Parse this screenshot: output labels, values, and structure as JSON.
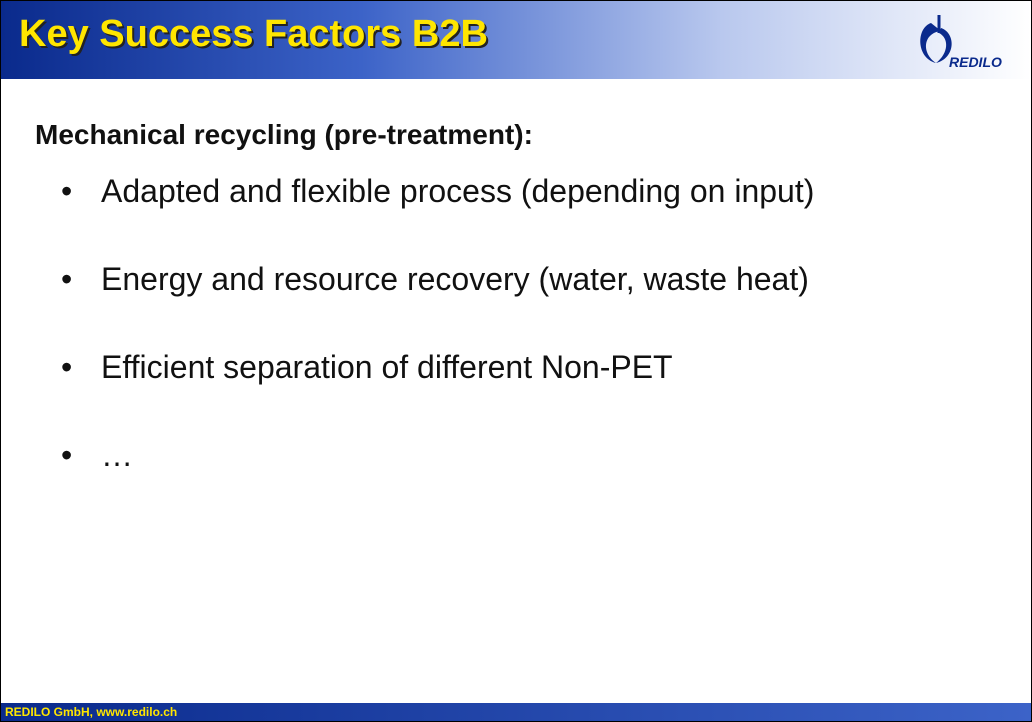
{
  "header": {
    "title": "Key Success Factors B2B",
    "logo_text": "REDILO"
  },
  "subtitle": "Mechanical recycling (pre-treatment):",
  "bullets": [
    "Adapted and flexible process (depending on input)",
    "Energy and resource recovery (water, waste heat)",
    "Efficient separation of different Non-PET",
    "…"
  ],
  "footer": "REDILO GmbH, www.redilo.ch"
}
